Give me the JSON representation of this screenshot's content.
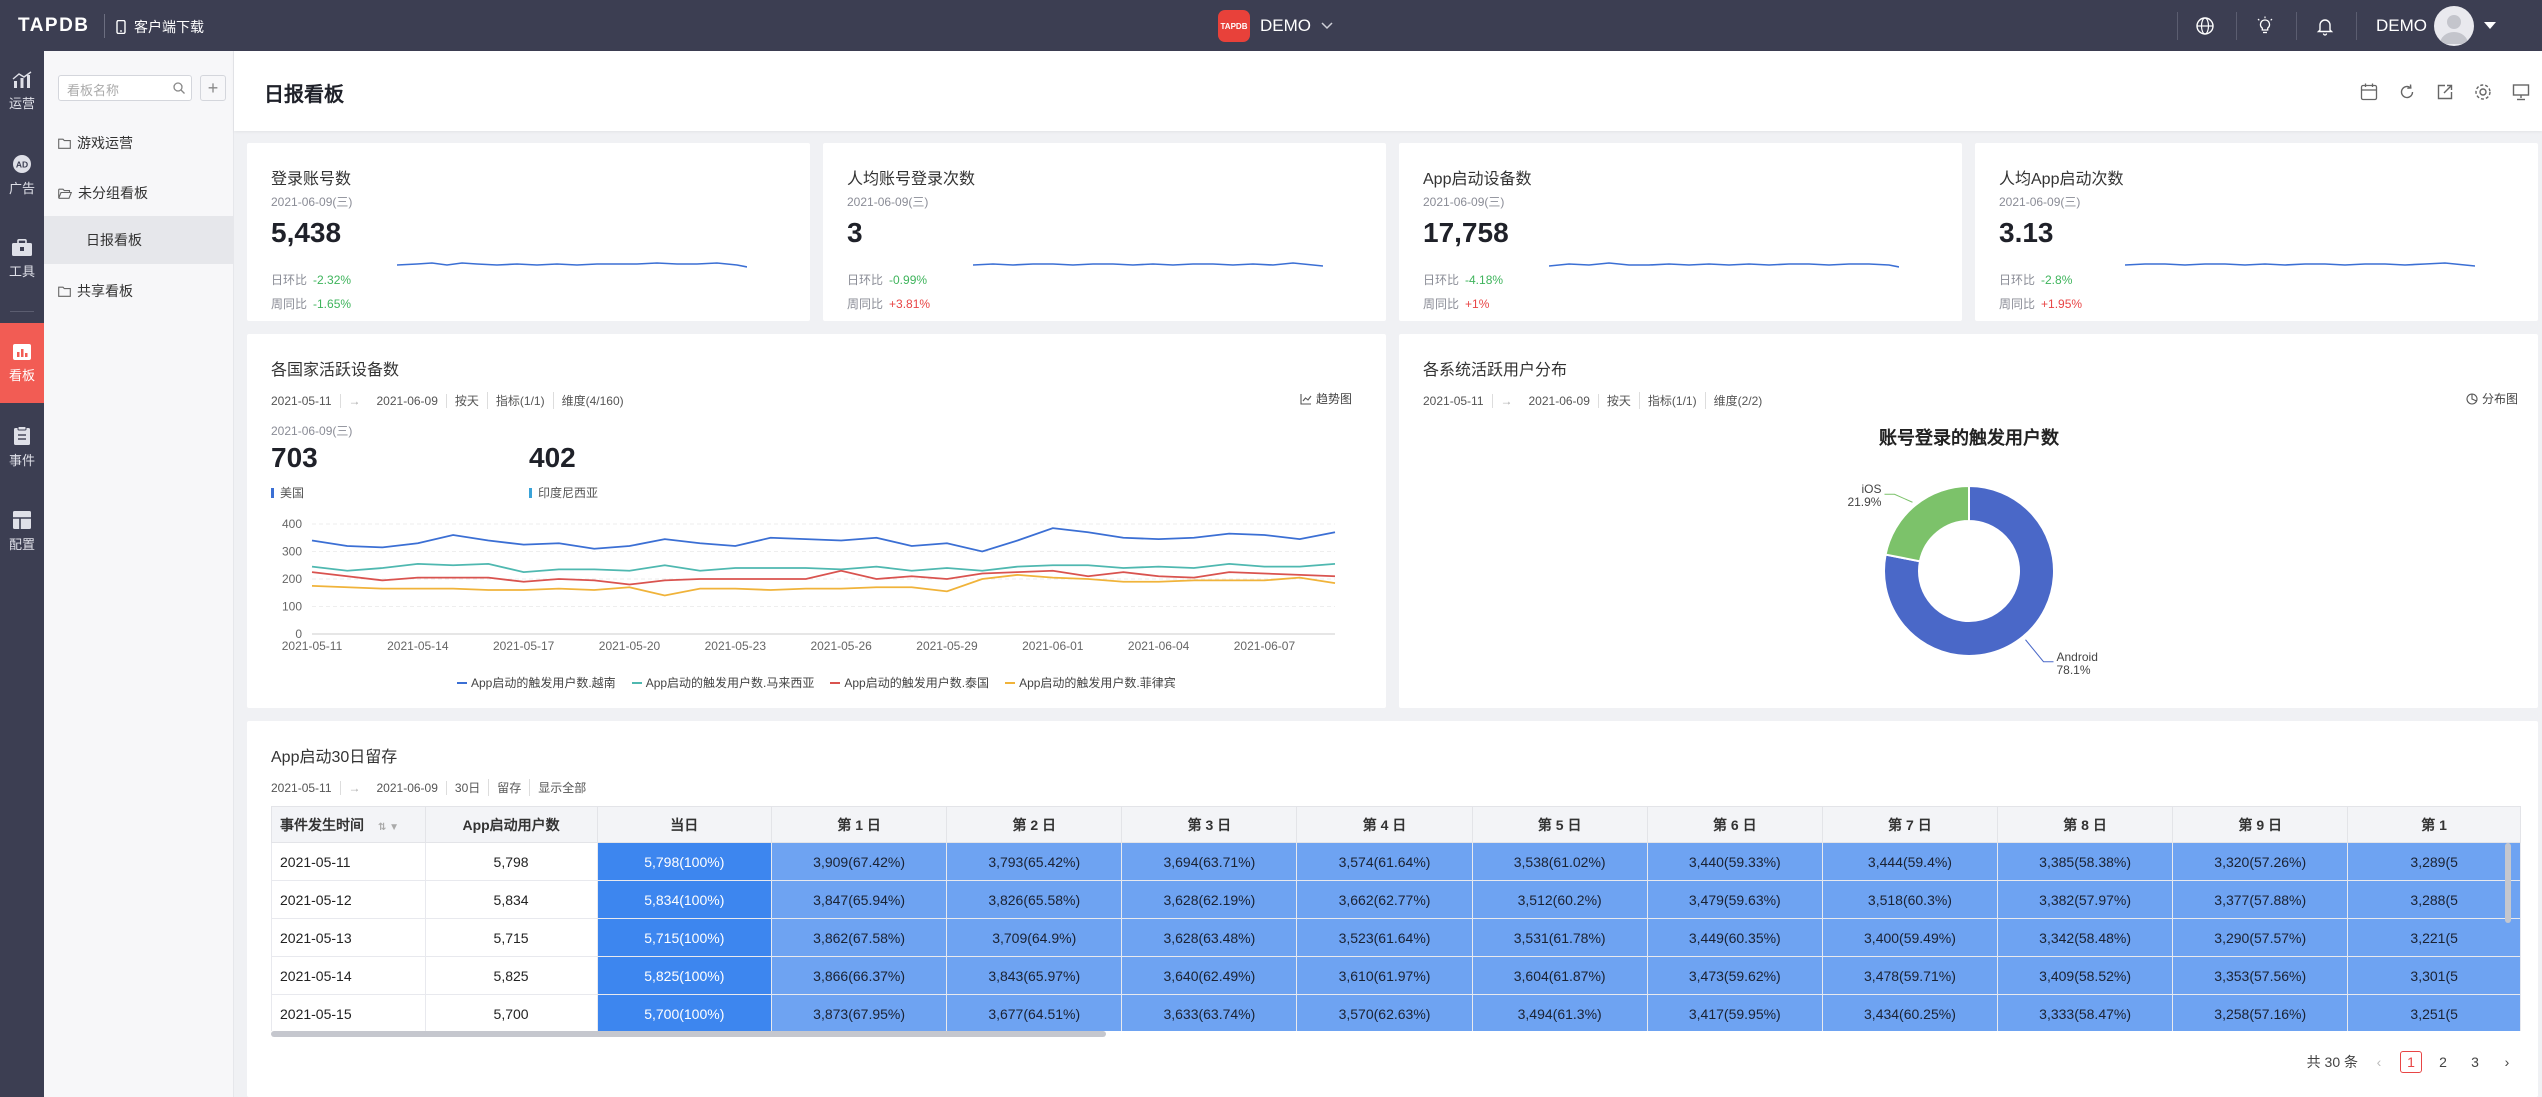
{
  "topbar": {
    "logo": "TAPDB",
    "client_download": "客户端下载",
    "app_icon_text": "TAPDB",
    "app_name": "DEMO",
    "user_name": "DEMO"
  },
  "sidenav": [
    {
      "label": "运营",
      "icon": "chart-icon"
    },
    {
      "label": "广告",
      "icon": "ad-icon"
    },
    {
      "label": "工具",
      "icon": "toolbox-icon"
    },
    {
      "label": "看板",
      "icon": "board-icon",
      "active": true
    },
    {
      "label": "事件",
      "icon": "clipboard-icon"
    },
    {
      "label": "配置",
      "icon": "config-icon"
    }
  ],
  "boards": {
    "search_placeholder": "看板名称",
    "folders": [
      "游戏运营",
      "未分组看板",
      "共享看板"
    ],
    "selected": "日报看板"
  },
  "page_title": "日报看板",
  "kpis": [
    {
      "title": "登录账号数",
      "date": "2021-06-09(三)",
      "value": "5,438",
      "dod_label": "日环比",
      "dod": "-2.32%",
      "wow_label": "周同比",
      "wow": "-1.65%"
    },
    {
      "title": "人均账号登录次数",
      "date": "2021-06-09(三)",
      "value": "3",
      "dod_label": "日环比",
      "dod": "-0.99%",
      "wow_label": "周同比",
      "wow": "+3.81%"
    },
    {
      "title": "App启动设备数",
      "date": "2021-06-09(三)",
      "value": "17,758",
      "dod_label": "日环比",
      "dod": "-4.18%",
      "wow_label": "周同比",
      "wow": "+1%"
    },
    {
      "title": "人均App启动次数",
      "date": "2021-06-09(三)",
      "value": "3.13",
      "dod_label": "日环比",
      "dod": "-2.8%",
      "wow_label": "周同比",
      "wow": "+1.95%"
    }
  ],
  "line_card": {
    "title": "各国家活跃设备数",
    "start": "2021-05-11",
    "end": "2021-06-09",
    "granularity": "按天",
    "metric": "指标(1/1)",
    "dimension": "维度(4/160)",
    "action": "趋势图",
    "sel_date": "2021-06-09(三)",
    "highlights": [
      {
        "value": "703",
        "label": "美国",
        "color": "#3b6fd4"
      },
      {
        "value": "402",
        "label": "印度尼西亚",
        "color": "#3aa3d8"
      }
    ]
  },
  "pie_card": {
    "title": "各系统活跃用户分布",
    "start": "2021-05-11",
    "end": "2021-06-09",
    "granularity": "按天",
    "metric": "指标(1/1)",
    "dimension": "维度(2/2)",
    "action": "分布图"
  },
  "chart_data": [
    {
      "type": "line",
      "x": [
        "2021-05-11",
        "2021-05-12",
        "2021-05-13",
        "2021-05-14",
        "2021-05-15",
        "2021-05-16",
        "2021-05-17",
        "2021-05-18",
        "2021-05-19",
        "2021-05-20",
        "2021-05-21",
        "2021-05-22",
        "2021-05-23",
        "2021-05-24",
        "2021-05-25",
        "2021-05-26",
        "2021-05-27",
        "2021-05-28",
        "2021-05-29",
        "2021-05-30",
        "2021-05-31",
        "2021-06-01",
        "2021-06-02",
        "2021-06-03",
        "2021-06-04",
        "2021-06-05",
        "2021-06-06",
        "2021-06-07",
        "2021-06-08",
        "2021-06-09"
      ],
      "xticks": [
        "2021-05-11",
        "2021-05-14",
        "2021-05-17",
        "2021-05-20",
        "2021-05-23",
        "2021-05-26",
        "2021-05-29",
        "2021-06-01",
        "2021-06-04",
        "2021-06-07"
      ],
      "yticks": [
        0,
        100,
        200,
        300,
        400
      ],
      "ylim": [
        0,
        400
      ],
      "series": [
        {
          "name": "App启动的触发用户数.越南",
          "color": "#3b6fd4",
          "values": [
            340,
            320,
            315,
            330,
            360,
            340,
            325,
            330,
            310,
            320,
            345,
            330,
            320,
            350,
            345,
            340,
            350,
            320,
            330,
            300,
            340,
            385,
            370,
            350,
            345,
            350,
            365,
            360,
            345,
            370
          ]
        },
        {
          "name": "App启动的触发用户数.马来西亚",
          "color": "#4fb8b0",
          "values": [
            245,
            230,
            240,
            255,
            250,
            255,
            225,
            235,
            235,
            230,
            250,
            230,
            240,
            240,
            240,
            235,
            245,
            230,
            240,
            230,
            245,
            250,
            250,
            240,
            245,
            240,
            255,
            245,
            245,
            255
          ]
        },
        {
          "name": "App启动的触发用户数.泰国",
          "color": "#d9534f",
          "values": [
            225,
            210,
            195,
            205,
            205,
            205,
            190,
            200,
            195,
            180,
            195,
            200,
            200,
            200,
            200,
            230,
            200,
            210,
            200,
            220,
            225,
            230,
            210,
            225,
            210,
            205,
            225,
            220,
            215,
            210
          ]
        },
        {
          "name": "App启动的触发用户数.菲律宾",
          "color": "#f0b33a",
          "values": [
            175,
            170,
            165,
            165,
            165,
            160,
            160,
            165,
            160,
            170,
            140,
            165,
            165,
            160,
            165,
            165,
            170,
            170,
            155,
            200,
            215,
            205,
            200,
            190,
            190,
            195,
            195,
            195,
            205,
            185
          ]
        }
      ]
    },
    {
      "type": "pie",
      "title": "账号登录的触发用户数",
      "labels": [
        "Android",
        "iOS"
      ],
      "values": [
        78.1,
        21.9
      ],
      "value_labels": [
        "78.1%",
        "21.9%"
      ],
      "colors": [
        "#4a68c8",
        "#7cc26a"
      ]
    }
  ],
  "retention": {
    "title": "App启动30日留存",
    "start": "2021-05-11",
    "end": "2021-06-09",
    "days": "30日",
    "type": "留存",
    "show_all": "显示全部",
    "headers": [
      "事件发生时间",
      "App启动用户数",
      "当日",
      "第 1 日",
      "第 2 日",
      "第 3 日",
      "第 4 日",
      "第 5 日",
      "第 6 日",
      "第 7 日",
      "第 8 日",
      "第 9 日",
      "第 1"
    ],
    "rows": [
      [
        "2021-05-11",
        "5,798",
        "5,798(100%)",
        "3,909(67.42%)",
        "3,793(65.42%)",
        "3,694(63.71%)",
        "3,574(61.64%)",
        "3,538(61.02%)",
        "3,440(59.33%)",
        "3,444(59.4%)",
        "3,385(58.38%)",
        "3,320(57.26%)",
        "3,289(5"
      ],
      [
        "2021-05-12",
        "5,834",
        "5,834(100%)",
        "3,847(65.94%)",
        "3,826(65.58%)",
        "3,628(62.19%)",
        "3,662(62.77%)",
        "3,512(60.2%)",
        "3,479(59.63%)",
        "3,518(60.3%)",
        "3,382(57.97%)",
        "3,377(57.88%)",
        "3,288(5"
      ],
      [
        "2021-05-13",
        "5,715",
        "5,715(100%)",
        "3,862(67.58%)",
        "3,709(64.9%)",
        "3,628(63.48%)",
        "3,523(61.64%)",
        "3,531(61.78%)",
        "3,449(60.35%)",
        "3,400(59.49%)",
        "3,342(58.48%)",
        "3,290(57.57%)",
        "3,221(5"
      ],
      [
        "2021-05-14",
        "5,825",
        "5,825(100%)",
        "3,866(66.37%)",
        "3,843(65.97%)",
        "3,640(62.49%)",
        "3,610(61.97%)",
        "3,604(61.87%)",
        "3,473(59.62%)",
        "3,478(59.71%)",
        "3,409(58.52%)",
        "3,353(57.56%)",
        "3,301(5"
      ],
      [
        "2021-05-15",
        "5,700",
        "5,700(100%)",
        "3,873(67.95%)",
        "3,677(64.51%)",
        "3,633(63.74%)",
        "3,570(62.63%)",
        "3,494(61.3%)",
        "3,417(59.95%)",
        "3,434(60.25%)",
        "3,333(58.47%)",
        "3,258(57.16%)",
        "3,251(5"
      ]
    ],
    "pagination": {
      "total": "共 30 条",
      "pages": [
        "1",
        "2",
        "3"
      ],
      "current": "1",
      "prev": "‹",
      "next": "›"
    }
  }
}
